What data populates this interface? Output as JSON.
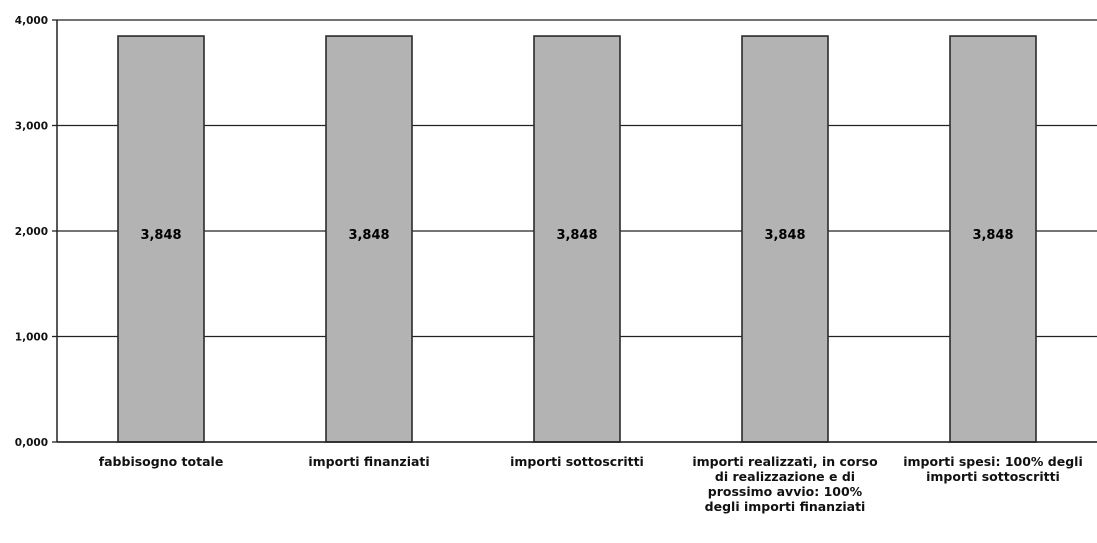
{
  "chart_data": {
    "type": "bar",
    "title": "",
    "xlabel": "",
    "ylabel": "",
    "categories": [
      "fabbisogno totale",
      "importi finanziati",
      "importi sottoscritti",
      "importi realizzati, in corso di realizzazione e di prossimo avvio: 100% degli importi finanziati",
      "importi spesi: 100% degli importi sottoscritti"
    ],
    "values": [
      3848,
      3848,
      3848,
      3848,
      3848
    ],
    "data_labels": [
      "3,848",
      "3,848",
      "3,848",
      "3,848",
      "3,848"
    ],
    "ylim": [
      0,
      4000
    ],
    "yticks": [
      0,
      1000,
      2000,
      3000,
      4000
    ],
    "ytick_labels": [
      "0,000",
      "1,000",
      "2,000",
      "3,000",
      "4,000"
    ],
    "grid": true,
    "legend": "none",
    "bar_color": "#b3b3b3",
    "bar_edge_color": "#2a2a2a",
    "axis_color": "#222222"
  }
}
